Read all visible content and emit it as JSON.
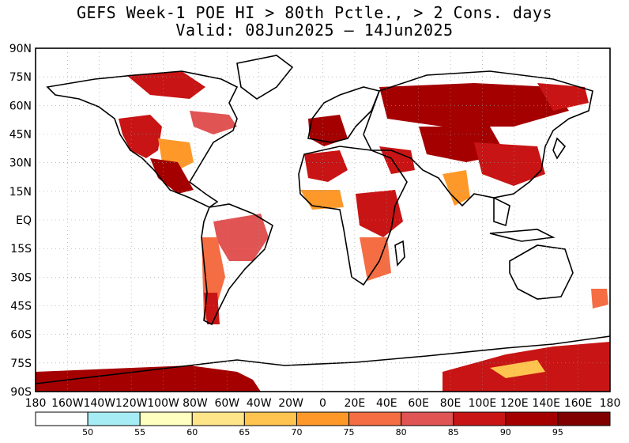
{
  "title": {
    "line1": "GEFS Week-1 POE HI > 80th Pctle., > 2 Cons. days",
    "line2": "Valid: 08Jun2025 — 14Jun2025"
  },
  "map": {
    "lat_labels": [
      "90N",
      "75N",
      "60N",
      "45N",
      "30N",
      "15N",
      "EQ",
      "15S",
      "30S",
      "45S",
      "60S",
      "75S",
      "90S"
    ],
    "lon_labels": [
      "180",
      "160W",
      "140W",
      "120W",
      "100W",
      "80W",
      "60W",
      "40W",
      "20W",
      "0",
      "20E",
      "40E",
      "60E",
      "80E",
      "100E",
      "120E",
      "140E",
      "160E",
      "180"
    ]
  },
  "colorbar": {
    "colors": [
      "#ffffff",
      "#a6ecf5",
      "#ffffbf",
      "#ffe58a",
      "#fec44f",
      "#fe9929",
      "#f46d43",
      "#e05454",
      "#c81414",
      "#a50000",
      "#800000"
    ],
    "labels": [
      "50",
      "55",
      "60",
      "65",
      "70",
      "75",
      "80",
      "85",
      "90",
      "95"
    ]
  },
  "shading_colors": {
    "light": "#fec44f",
    "mid": "#f46d43",
    "dark": "#a50000"
  }
}
